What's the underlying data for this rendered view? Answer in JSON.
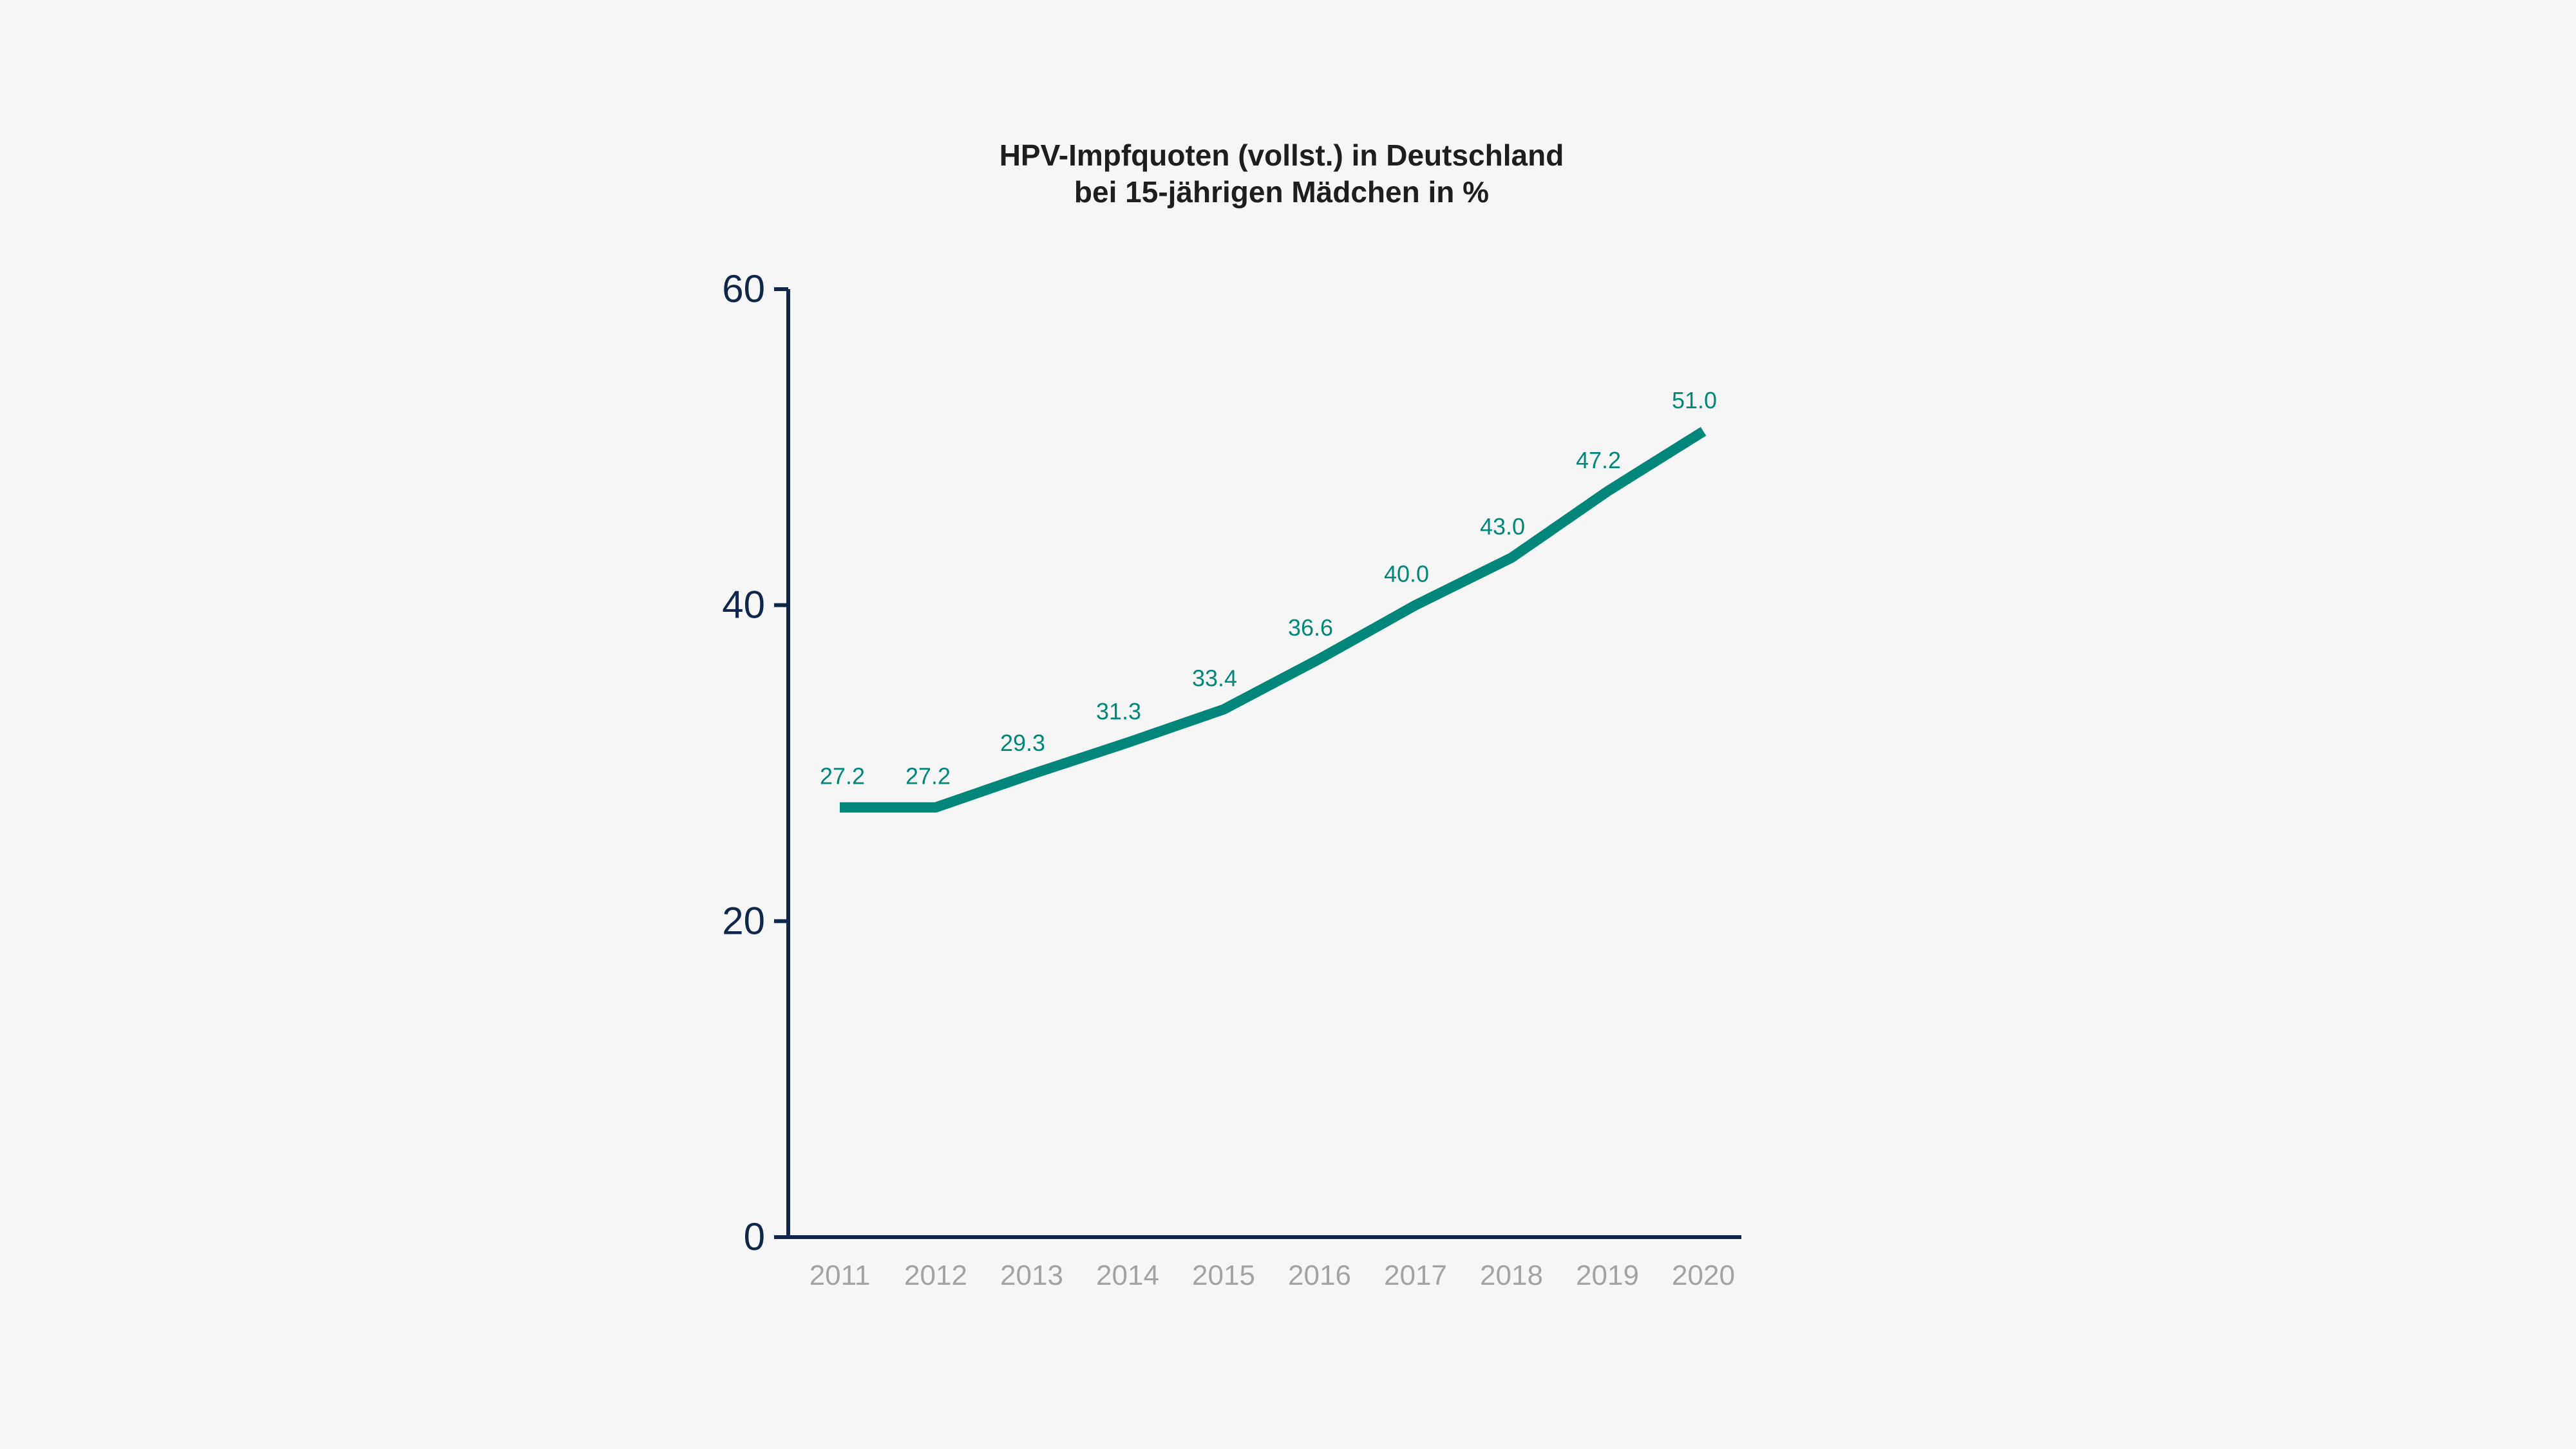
{
  "chart_data": {
    "type": "line",
    "title": [
      "HPV-Impfquoten (vollst.) in Deutschland",
      "bei 15-jährigen Mädchen in %"
    ],
    "xlabel": "",
    "ylabel": "",
    "categories": [
      "2011",
      "2012",
      "2013",
      "2014",
      "2015",
      "2016",
      "2017",
      "2018",
      "2019",
      "2020"
    ],
    "values": [
      27.2,
      27.2,
      29.3,
      31.3,
      33.4,
      36.6,
      40.0,
      43.0,
      47.2,
      51.0
    ],
    "data_labels": [
      "27.2",
      "27.2",
      "29.3",
      "31.3",
      "33.4",
      "36.6",
      "40.0",
      "43.0",
      "47.2",
      "51.0"
    ],
    "ylim": [
      0,
      60
    ],
    "yticks": [
      "0",
      "20",
      "40",
      "60"
    ],
    "grid": false,
    "colors": {
      "line": "#00877a",
      "axis": "#10264a",
      "xtick": "#a3a3a3",
      "background": "#f6f6f6"
    }
  }
}
